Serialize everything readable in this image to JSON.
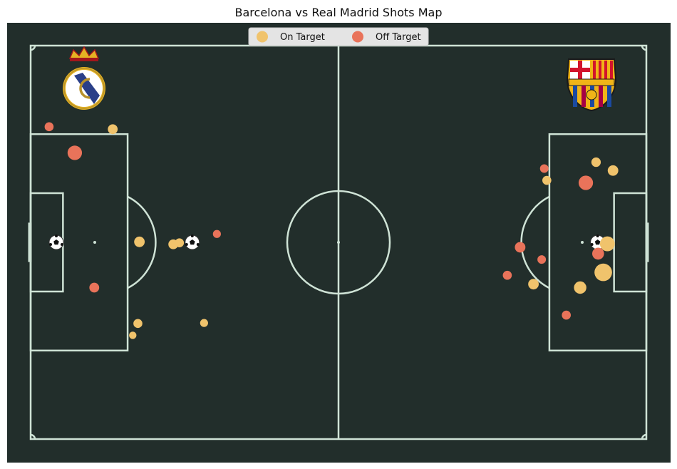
{
  "chart_data": {
    "type": "scatter",
    "title": "Barcelona vs Real Madrid Shots Map",
    "xlabel": "",
    "ylabel": "",
    "pitch": {
      "length_m": 120,
      "width_m": 80
    },
    "legend": {
      "placement": "top-center",
      "entries": [
        {
          "label": "On Target",
          "color": "#f0c36c"
        },
        {
          "label": "Off Target",
          "color": "#e9735a"
        }
      ]
    },
    "colors": {
      "pitch": "#222e2b",
      "lines": "#cfe3d6",
      "on_target": "#f0c36c",
      "off_target": "#e9735a"
    },
    "team_logos": [
      {
        "team": "Real Madrid",
        "side": "left",
        "icon": "real-madrid-crest-icon"
      },
      {
        "team": "Barcelona",
        "side": "right",
        "icon": "barcelona-crest-icon"
      }
    ],
    "goals": [
      {
        "team": "Real Madrid",
        "x": 5,
        "y": 40
      },
      {
        "team": "Real Madrid",
        "x": 31.5,
        "y": 40
      },
      {
        "team": "Barcelona",
        "x": 110.5,
        "y": 40
      }
    ],
    "series": [
      {
        "team": "Real Madrid",
        "shots": [
          {
            "x": 3.6,
            "y": 16.5,
            "xg": 0.03,
            "on_target": false
          },
          {
            "x": 16,
            "y": 17.0,
            "xg": 0.04,
            "on_target": true
          },
          {
            "x": 8.6,
            "y": 21.8,
            "xg": 0.12,
            "on_target": false
          },
          {
            "x": 21.2,
            "y": 39.9,
            "xg": 0.05,
            "on_target": true
          },
          {
            "x": 27.8,
            "y": 40.4,
            "xg": 0.04,
            "on_target": true
          },
          {
            "x": 29,
            "y": 40.1,
            "xg": 0.03,
            "on_target": true
          },
          {
            "x": 36.3,
            "y": 38.3,
            "xg": 0.02,
            "on_target": false
          },
          {
            "x": 12.4,
            "y": 49.2,
            "xg": 0.04,
            "on_target": false
          },
          {
            "x": 20.9,
            "y": 56.5,
            "xg": 0.03,
            "on_target": true
          },
          {
            "x": 33.8,
            "y": 56.4,
            "xg": 0.02,
            "on_target": true
          },
          {
            "x": 19.9,
            "y": 58.9,
            "xg": 0.015,
            "on_target": true
          }
        ]
      },
      {
        "team": "Barcelona",
        "shots": [
          {
            "x": 110.2,
            "y": 23.7,
            "xg": 0.035,
            "on_target": true
          },
          {
            "x": 113.5,
            "y": 25.4,
            "xg": 0.05,
            "on_target": true
          },
          {
            "x": 100.1,
            "y": 25.0,
            "xg": 0.025,
            "on_target": false
          },
          {
            "x": 108.2,
            "y": 27.9,
            "xg": 0.12,
            "on_target": false
          },
          {
            "x": 100.6,
            "y": 27.4,
            "xg": 0.03,
            "on_target": true
          },
          {
            "x": 112.4,
            "y": 40.3,
            "xg": 0.13,
            "on_target": true
          },
          {
            "x": 95.4,
            "y": 41.0,
            "xg": 0.05,
            "on_target": false
          },
          {
            "x": 110.6,
            "y": 42.3,
            "xg": 0.07,
            "on_target": false
          },
          {
            "x": 99.6,
            "y": 43.5,
            "xg": 0.025,
            "on_target": false
          },
          {
            "x": 111.6,
            "y": 46.1,
            "xg": 0.2,
            "on_target": true
          },
          {
            "x": 92.9,
            "y": 46.7,
            "xg": 0.03,
            "on_target": false
          },
          {
            "x": 98.0,
            "y": 48.5,
            "xg": 0.05,
            "on_target": true
          },
          {
            "x": 107.1,
            "y": 49.2,
            "xg": 0.08,
            "on_target": true
          },
          {
            "x": 104.4,
            "y": 54.8,
            "xg": 0.03,
            "on_target": false
          }
        ]
      }
    ]
  }
}
